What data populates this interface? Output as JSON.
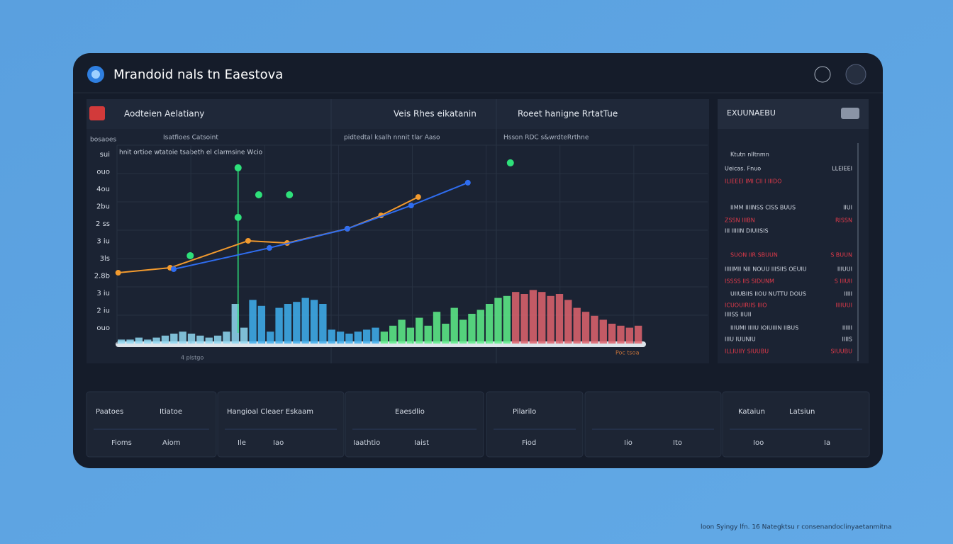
{
  "header": {
    "title": "Mrandoid nals tn Eaestova"
  },
  "main_panel": {
    "tabs": [
      "Aodteien Aelatiany",
      "Veis Rhes eikatanin",
      "Roeet hanigne RrtatTue"
    ],
    "subtitles": [
      "bosaoes",
      "Isatfioes Catsoint",
      "pidtedtal ksalh nnnit tlar Aaso",
      "Hsson RDC s&wrdteRrthne"
    ],
    "legend": "hnit ortioe wtatoie tsabeth el clarmsine Wcio",
    "y_labels": [
      "sui",
      "ouo",
      "4ou",
      "2bu",
      "2 ss",
      "3 iu",
      "3ls",
      "2.8b",
      "3 iu",
      "2 iu",
      "ouo"
    ],
    "x_labels": [
      "4 plstgo",
      "Poc tsoa"
    ],
    "chart": {
      "type": "bar",
      "xlim": [
        0,
        100
      ],
      "ylim": [
        0,
        100
      ],
      "bars": {
        "xlim": [
          0,
          89
        ],
        "values": [
          2,
          2,
          3,
          2,
          3,
          4,
          5,
          6,
          5,
          4,
          3,
          4,
          6,
          20,
          8,
          22,
          19,
          6,
          18,
          20,
          21,
          23,
          22,
          20,
          7,
          6,
          5,
          6,
          7,
          8,
          6,
          9,
          12,
          8,
          13,
          9,
          16,
          10,
          18,
          12,
          15,
          17,
          20,
          23,
          24,
          26,
          25,
          27,
          26,
          24,
          25,
          22,
          18,
          16,
          14,
          12,
          10,
          9,
          8,
          9
        ],
        "colors": [
          "#8fd8f2",
          "#3fb0f0",
          "#5ef08a",
          "#e0646e"
        ]
      },
      "lines": [
        {
          "color": "#f29a2e",
          "x": [
            0.2,
            9,
            22.2,
            28.8,
            39,
            44.7,
            51
          ],
          "y": [
            35.7,
            38.2,
            51.8,
            50.7,
            57.9,
            64.6,
            73.9
          ]
        },
        {
          "color": "#2f6df0",
          "x": [
            9.6,
            25.8,
            39,
            49.8,
            59.4
          ],
          "y": [
            37.5,
            48.2,
            57.9,
            69.6,
            81.1
          ]
        }
      ],
      "dots": {
        "color": "#2ee07a",
        "x": [
          12.4,
          20.5,
          20.5,
          24,
          29.2,
          66.6
        ],
        "y": [
          44.3,
          63.6,
          88.6,
          75,
          75,
          91.1
        ]
      }
    }
  },
  "side_panel": {
    "title": "EXUUNAEBU",
    "rows": [
      {
        "label": "Ktutn nlltnmn",
        "value": ""
      },
      {
        "label": "Ueicas. Fnuo",
        "value": "LLEIEEI"
      },
      {
        "label": "ILIEEEI IMI Cll I IIIDO",
        "value": ""
      },
      {
        "label": "IIMM IIIINSS CISS BUUS",
        "value": "IIUI"
      },
      {
        "label": "ZSSN IIIBN",
        "value": "RISSN"
      },
      {
        "label": "III IIIIIN DIUIISIS",
        "value": ""
      },
      {
        "label": "SUON IIR SBUUN",
        "value": "S BUUN"
      },
      {
        "label": "IIIIIMII NII NOUU IIISIIS OEUIU",
        "value": "IIIUUI"
      },
      {
        "label": "ISSSS IIS SIDUNM",
        "value": "S IIIUII"
      },
      {
        "label": "UIIUBIIS IIOU NUTTU DOUS",
        "value": "IIIII"
      },
      {
        "label": "ICUOUIRIIS IIIO",
        "value": "IIIIUUI"
      },
      {
        "label": "IIIISS IIUII",
        "value": ""
      },
      {
        "label": "IIIUMI IIIIU IOIUIIIN IIBUS",
        "value": "IIIIII"
      },
      {
        "label": "IIIU IUUNIU",
        "value": "IIIIS"
      },
      {
        "label": "ILLIUIIY SIUUBU",
        "value": "SIUUBU"
      }
    ]
  },
  "cards": [
    {
      "top": [
        "Paatoes",
        "Itiatoe"
      ],
      "bottom": [
        "Fioms",
        "Aiom"
      ]
    },
    {
      "top": [
        "Hangioal Cleaer Eskaam"
      ],
      "bottom": [
        "Ile",
        "Iao"
      ]
    },
    {
      "top": [
        "Eaesdlio"
      ],
      "bottom": [
        "Iaathtio",
        "Iaist"
      ]
    },
    {
      "top": [
        "Pilarilo"
      ],
      "bottom": [
        "Fiod"
      ]
    },
    {
      "top": [],
      "bottom": [
        "Iio",
        "Ito"
      ]
    },
    {
      "top": [
        "Kataiun",
        "Latsiun"
      ],
      "bottom": [
        "Ioo",
        "Ia"
      ]
    }
  ],
  "footer": "loon Syingy lfn. 16 Nategktsu r consenandoclinyaetanmitna"
}
